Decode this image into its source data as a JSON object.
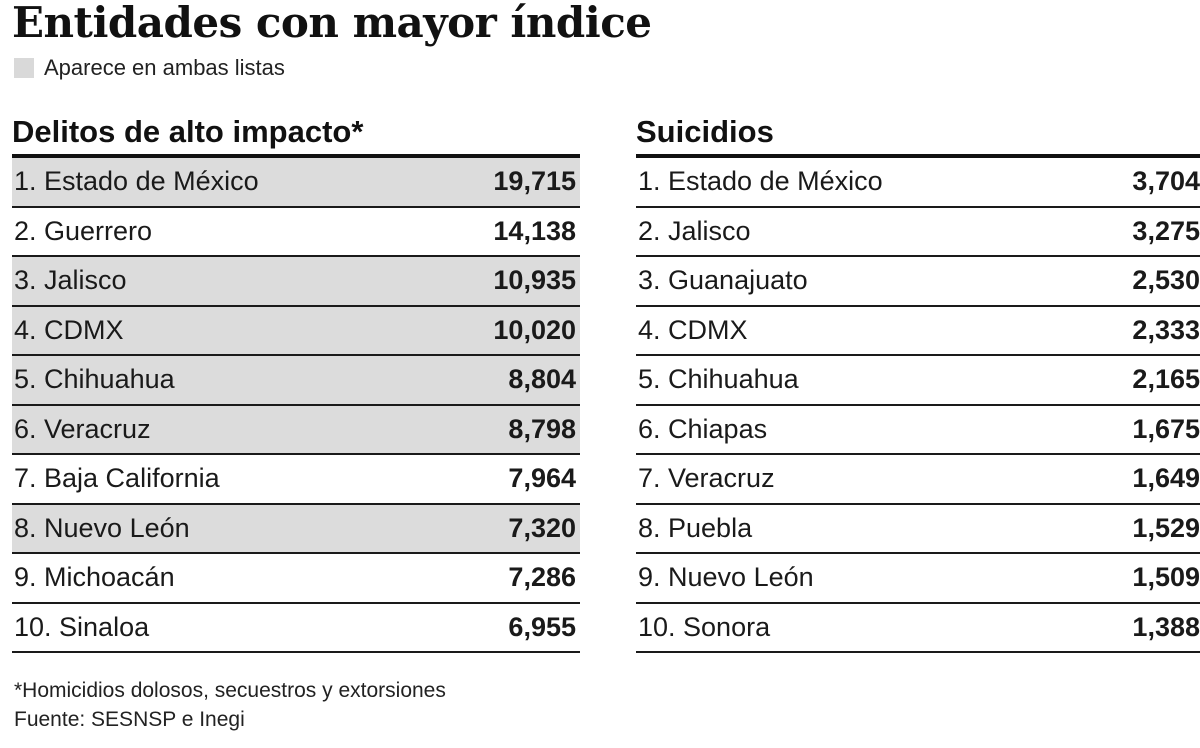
{
  "title": "Entidades con mayor índice",
  "legend": {
    "label": "Aparece en ambas listas",
    "color": "#d9d9d9"
  },
  "chart_data": [
    {
      "type": "table",
      "title": "Delitos de alto impacto*",
      "rows": [
        {
          "name": "1. Estado de México",
          "value": "19,715",
          "shaded": true
        },
        {
          "name": "2. Guerrero",
          "value": "14,138",
          "shaded": false
        },
        {
          "name": "3. Jalisco",
          "value": "10,935",
          "shaded": true
        },
        {
          "name": "4. CDMX",
          "value": "10,020",
          "shaded": true
        },
        {
          "name": "5. Chihuahua",
          "value": "8,804",
          "shaded": true
        },
        {
          "name": "6. Veracruz",
          "value": "8,798",
          "shaded": true
        },
        {
          "name": "7. Baja California",
          "value": "7,964",
          "shaded": false
        },
        {
          "name": "8. Nuevo León",
          "value": "7,320",
          "shaded": true
        },
        {
          "name": "9. Michoacán",
          "value": "7,286",
          "shaded": false
        },
        {
          "name": "10. Sinaloa",
          "value": "6,955",
          "shaded": false
        }
      ]
    },
    {
      "type": "table",
      "title": "Suicidios",
      "rows": [
        {
          "name": "1. Estado de México",
          "value": "3,704",
          "shaded": false
        },
        {
          "name": "2. Jalisco",
          "value": "3,275",
          "shaded": false
        },
        {
          "name": "3. Guanajuato",
          "value": "2,530",
          "shaded": false
        },
        {
          "name": "4. CDMX",
          "value": "2,333",
          "shaded": false
        },
        {
          "name": "5. Chihuahua",
          "value": "2,165",
          "shaded": false
        },
        {
          "name": "6. Chiapas",
          "value": "1,675",
          "shaded": false
        },
        {
          "name": "7. Veracruz",
          "value": "1,649",
          "shaded": false
        },
        {
          "name": "8. Puebla",
          "value": "1,529",
          "shaded": false
        },
        {
          "name": "9. Nuevo León",
          "value": "1,509",
          "shaded": false
        },
        {
          "name": "10. Sonora",
          "value": "1,388",
          "shaded": false
        }
      ]
    }
  ],
  "footnote": "*Homicidios dolosos, secuestros y extorsiones",
  "source": "Fuente: SESNSP e Inegi"
}
